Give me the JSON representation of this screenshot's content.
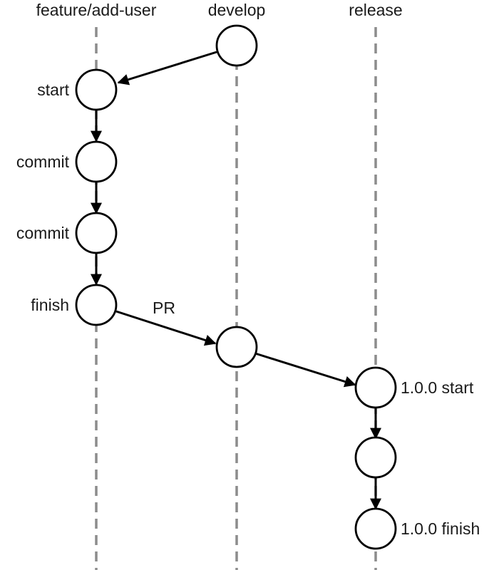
{
  "lanes": [
    {
      "id": "feature",
      "label": "feature/add-user"
    },
    {
      "id": "develop",
      "label": "develop"
    },
    {
      "id": "release",
      "label": "release"
    }
  ],
  "nodes": [
    {
      "id": "dev1",
      "lane": "develop",
      "label": ""
    },
    {
      "id": "f_start",
      "lane": "feature",
      "label": "start"
    },
    {
      "id": "f_commit1",
      "lane": "feature",
      "label": "commit"
    },
    {
      "id": "f_commit2",
      "lane": "feature",
      "label": "commit"
    },
    {
      "id": "f_finish",
      "lane": "feature",
      "label": "finish"
    },
    {
      "id": "dev2",
      "lane": "develop",
      "label": ""
    },
    {
      "id": "r_start",
      "lane": "release",
      "label": "1.0.0 start"
    },
    {
      "id": "r_mid",
      "lane": "release",
      "label": ""
    },
    {
      "id": "r_finish",
      "lane": "release",
      "label": "1.0.0 finish"
    }
  ],
  "edges": [
    {
      "from": "dev1",
      "to": "f_start",
      "label": ""
    },
    {
      "from": "f_start",
      "to": "f_commit1",
      "label": ""
    },
    {
      "from": "f_commit1",
      "to": "f_commit2",
      "label": ""
    },
    {
      "from": "f_commit2",
      "to": "f_finish",
      "label": ""
    },
    {
      "from": "f_finish",
      "to": "dev2",
      "label": "PR"
    },
    {
      "from": "dev2",
      "to": "r_start",
      "label": ""
    },
    {
      "from": "r_start",
      "to": "r_mid",
      "label": ""
    },
    {
      "from": "r_mid",
      "to": "r_finish",
      "label": ""
    }
  ],
  "colors": {
    "lane_line": "#8c8c8c",
    "node_stroke": "#000000",
    "node_fill": "#ffffff",
    "text": "#1a1a1a"
  }
}
